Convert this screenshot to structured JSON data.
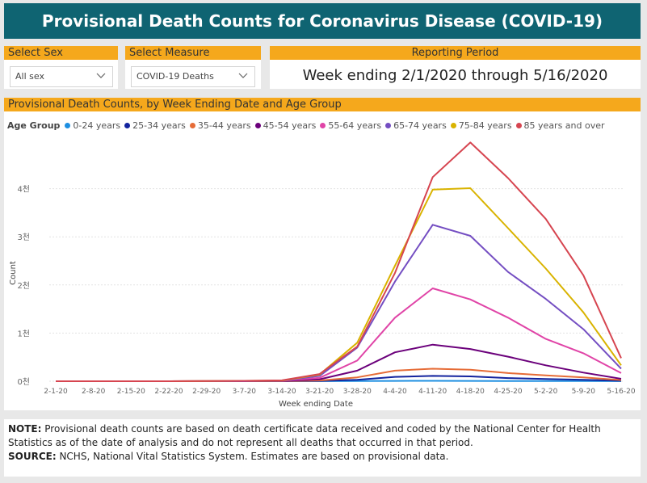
{
  "header": {
    "title": "Provisional Death Counts for Coronavirus Disease (COVID-19)"
  },
  "filters": {
    "sex": {
      "label": "Select Sex",
      "value": "All sex"
    },
    "measure": {
      "label": "Select Measure",
      "value": "COVID-19 Deaths"
    },
    "period": {
      "label": "Reporting Period",
      "value": "Week ending 2/1/2020 through 5/16/2020"
    }
  },
  "chart_panel": {
    "title": "Provisional Death Counts, by Week Ending Date and Age Group"
  },
  "legend": {
    "title": "Age Group"
  },
  "notes": {
    "note_label": "NOTE:",
    "note_text": " Provisional death counts are based on death certificate data received and coded by the National Center for Health Statistics as of the date of analysis and do not represent all deaths that occurred in that period.",
    "source_label": "SOURCE:",
    "source_text": " NCHS, National Vital Statistics System. Estimates are based on provisional data."
  },
  "chart_data": {
    "type": "line",
    "title": "Provisional Death Counts, by Week Ending Date and Age Group",
    "xlabel": "Week ending Date",
    "ylabel": "Count",
    "ylim": [
      0,
      5000
    ],
    "yticks": [
      0,
      1000,
      2000,
      3000,
      4000
    ],
    "ytick_labels": [
      "0천",
      "1천",
      "2천",
      "3천",
      "4천"
    ],
    "grid": true,
    "legend_position": "top-left",
    "categories": [
      "2-1-20",
      "2-8-20",
      "2-15-20",
      "2-22-20",
      "2-29-20",
      "3-7-20",
      "3-14-20",
      "3-21-20",
      "3-28-20",
      "4-4-20",
      "4-11-20",
      "4-18-20",
      "4-25-20",
      "5-2-20",
      "5-9-20",
      "5-16-20"
    ],
    "series": [
      {
        "name": "0-24 years",
        "color": "#1e8fe1",
        "values": [
          0,
          0,
          0,
          0,
          0,
          0,
          0,
          1,
          3,
          6,
          8,
          7,
          5,
          4,
          3,
          1
        ]
      },
      {
        "name": "25-34 years",
        "color": "#12239e",
        "values": [
          0,
          0,
          0,
          0,
          0,
          0,
          1,
          6,
          30,
          90,
          110,
          100,
          65,
          45,
          30,
          10
        ]
      },
      {
        "name": "35-44 years",
        "color": "#e66c37",
        "values": [
          0,
          0,
          0,
          0,
          0,
          1,
          2,
          15,
          80,
          220,
          260,
          240,
          170,
          120,
          80,
          25
        ]
      },
      {
        "name": "45-54 years",
        "color": "#6b007b",
        "values": [
          0,
          0,
          0,
          0,
          1,
          2,
          5,
          40,
          220,
          600,
          760,
          670,
          510,
          330,
          180,
          50
        ]
      },
      {
        "name": "55-64 years",
        "color": "#e044a7",
        "values": [
          0,
          0,
          0,
          0,
          1,
          3,
          8,
          70,
          430,
          1320,
          1930,
          1700,
          1320,
          880,
          580,
          170
        ]
      },
      {
        "name": "65-74 years",
        "color": "#744ec2",
        "values": [
          0,
          0,
          0,
          0,
          2,
          5,
          12,
          110,
          700,
          2070,
          3250,
          3020,
          2270,
          1710,
          1080,
          260
        ]
      },
      {
        "name": "75-84 years",
        "color": "#d9b300",
        "values": [
          0,
          0,
          0,
          0,
          3,
          8,
          15,
          140,
          800,
          2400,
          3980,
          4010,
          3180,
          2340,
          1430,
          330
        ]
      },
      {
        "name": "85 years and over",
        "color": "#d64550",
        "values": [
          0,
          0,
          0,
          0,
          3,
          8,
          18,
          150,
          720,
          2250,
          4240,
          4960,
          4220,
          3370,
          2200,
          480
        ]
      }
    ]
  }
}
